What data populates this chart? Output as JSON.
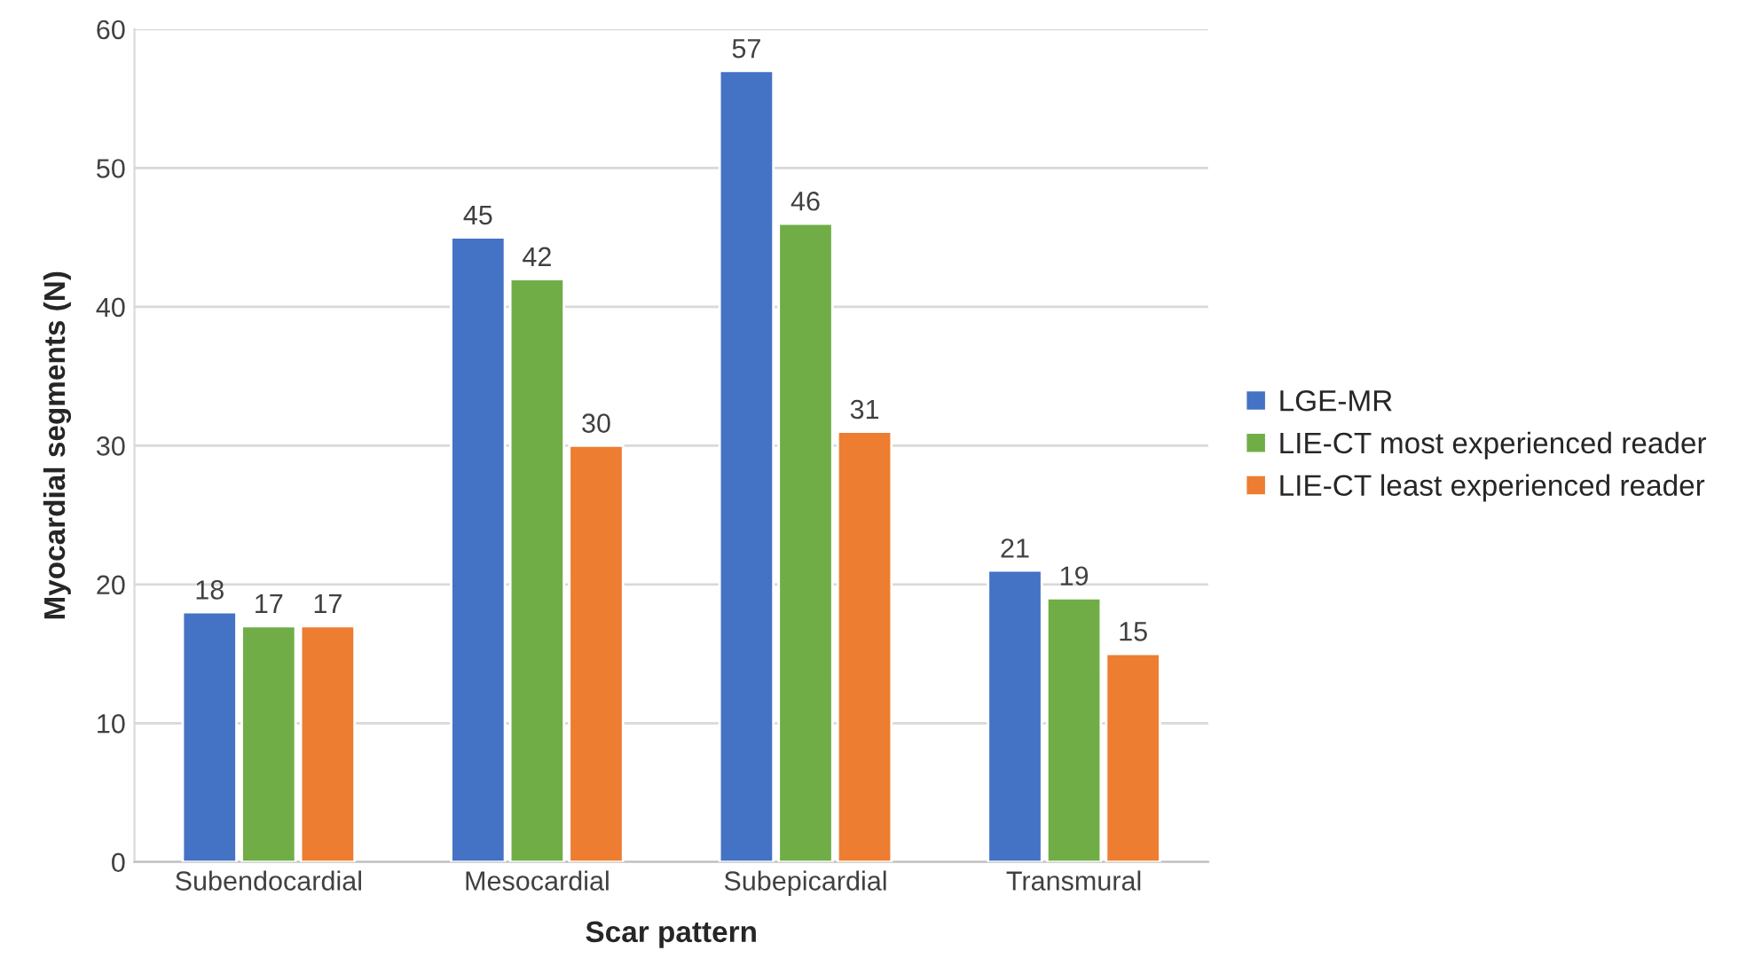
{
  "chart_data": {
    "type": "bar",
    "xlabel": "Scar pattern",
    "ylabel": "Myocardial segments (N)",
    "categories": [
      "Subendocardial",
      "Mesocardial",
      "Subepicardial",
      "Transmural"
    ],
    "series": [
      {
        "name": "LGE-MR",
        "color": "#4472c4",
        "values": [
          18,
          45,
          57,
          21
        ]
      },
      {
        "name": "LIE-CT most experienced reader",
        "color": "#70ad47",
        "values": [
          17,
          42,
          46,
          19
        ]
      },
      {
        "name": "LIE-CT least experienced reader",
        "color": "#ed7d31",
        "values": [
          17,
          30,
          31,
          15
        ]
      }
    ],
    "ylim": [
      0,
      60
    ],
    "yticks": [
      0,
      10,
      20,
      30,
      40,
      50,
      60
    ],
    "grid": "y",
    "legend": "right",
    "data_labels": true
  }
}
